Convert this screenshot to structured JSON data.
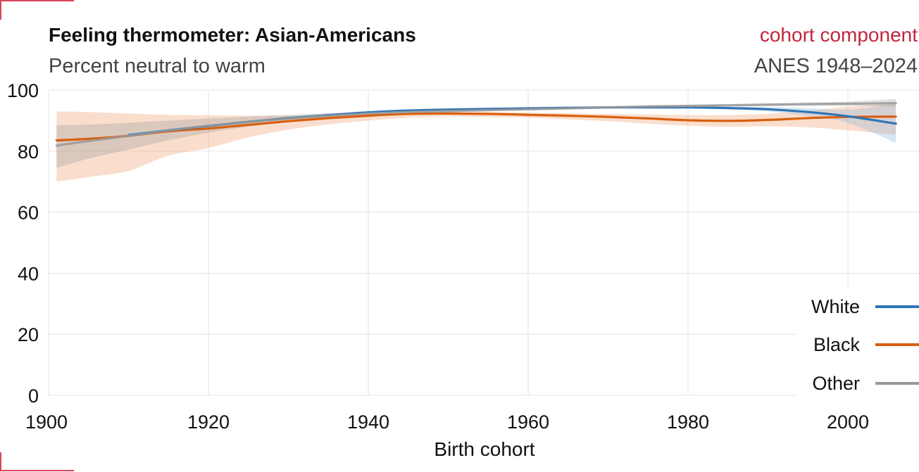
{
  "chart_data": {
    "type": "line",
    "title": "Feeling thermometer: Asian-Americans",
    "subtitle": "Percent neutral to warm",
    "component": "cohort component",
    "source": "ANES 1948–2024",
    "xlabel": "Birth cohort",
    "ylabel": "",
    "xlim": [
      1900,
      2008
    ],
    "ylim": [
      0,
      100
    ],
    "x_ticks": [
      "1900",
      "1920",
      "1940",
      "1960",
      "1980",
      "2000"
    ],
    "y_ticks": [
      "0",
      "20",
      "40",
      "60",
      "80",
      "100"
    ],
    "grid": true,
    "legend_position": "bottom-right",
    "colors": {
      "accent": "#c0273d",
      "frame": "#d9445a"
    },
    "series": [
      {
        "name": "White",
        "color": "#2f75b5",
        "x": [
          1910,
          1915,
          1920,
          1925,
          1930,
          1935,
          1940,
          1945,
          1950,
          1955,
          1960,
          1965,
          1970,
          1975,
          1980,
          1985,
          1990,
          1995,
          2000,
          2006
        ],
        "values": [
          85.2,
          86.8,
          88.2,
          89.6,
          90.8,
          91.8,
          92.7,
          93.3,
          93.6,
          93.8,
          94.0,
          94.2,
          94.3,
          94.3,
          94.3,
          94.1,
          93.7,
          92.8,
          91.4,
          89.0
        ],
        "lower": [
          84.5,
          86.3,
          87.8,
          89.3,
          90.6,
          91.6,
          92.5,
          93.1,
          93.4,
          93.6,
          93.8,
          94.0,
          94.1,
          94.1,
          94.0,
          93.7,
          93.0,
          91.5,
          89.2,
          82.7
        ],
        "upper": [
          85.9,
          87.3,
          88.6,
          89.9,
          91.0,
          92.0,
          92.9,
          93.5,
          93.8,
          94.0,
          94.2,
          94.4,
          94.5,
          94.5,
          94.6,
          94.5,
          94.4,
          94.1,
          93.6,
          95.3
        ]
      },
      {
        "name": "Black",
        "color": "#d95f0e",
        "x": [
          1901,
          1905,
          1910,
          1915,
          1920,
          1925,
          1930,
          1935,
          1940,
          1945,
          1950,
          1955,
          1960,
          1965,
          1970,
          1975,
          1980,
          1985,
          1990,
          1995,
          2000,
          2006
        ],
        "values": [
          83.5,
          84.0,
          85.0,
          86.5,
          87.4,
          88.6,
          89.8,
          90.8,
          91.6,
          92.2,
          92.3,
          92.2,
          91.9,
          91.6,
          91.2,
          90.7,
          90.1,
          89.9,
          90.2,
          90.8,
          91.2,
          91.3
        ],
        "lower": [
          70.0,
          71.5,
          73.5,
          78.5,
          81.0,
          84.5,
          87.0,
          88.7,
          90.0,
          91.0,
          91.3,
          91.2,
          90.9,
          90.4,
          89.8,
          89.0,
          88.3,
          88.0,
          88.1,
          87.8,
          86.8,
          85.3
        ],
        "upper": [
          93.0,
          92.8,
          92.3,
          91.9,
          91.7,
          91.6,
          91.6,
          91.8,
          92.1,
          92.5,
          92.7,
          92.7,
          92.6,
          92.4,
          92.2,
          92.0,
          91.8,
          91.8,
          92.2,
          93.2,
          94.5,
          95.5
        ]
      },
      {
        "name": "Other",
        "color": "#999999",
        "x": [
          1901,
          1905,
          1910,
          1915,
          1920,
          1925,
          1930,
          1935,
          1940,
          1945,
          1950,
          1955,
          1960,
          1965,
          1970,
          1975,
          1980,
          1985,
          1990,
          1995,
          2000,
          2006
        ],
        "values": [
          81.8,
          83.3,
          85.0,
          86.8,
          88.3,
          89.6,
          90.7,
          91.6,
          92.3,
          92.8,
          93.1,
          93.4,
          93.7,
          94.0,
          94.3,
          94.6,
          94.8,
          95.0,
          95.2,
          95.4,
          95.5,
          95.7
        ],
        "lower": [
          74.5,
          77.5,
          80.5,
          83.5,
          86.0,
          88.0,
          89.5,
          90.8,
          91.7,
          92.3,
          92.7,
          93.0,
          93.3,
          93.6,
          93.9,
          94.2,
          94.4,
          94.6,
          94.7,
          94.8,
          94.8,
          94.5
        ],
        "upper": [
          88.5,
          88.7,
          89.3,
          90.0,
          90.7,
          91.3,
          91.9,
          92.4,
          92.9,
          93.3,
          93.6,
          93.9,
          94.1,
          94.4,
          94.7,
          95.0,
          95.2,
          95.4,
          95.7,
          95.9,
          96.2,
          97.0
        ]
      }
    ]
  }
}
